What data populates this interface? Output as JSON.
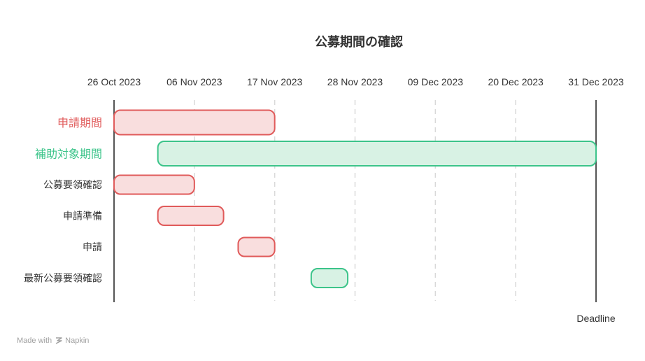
{
  "chart_data": {
    "type": "gantt",
    "title": "公募期間の確認",
    "x_ticks": [
      "26 Oct 2023",
      "06 Nov 2023",
      "17 Nov 2023",
      "28 Nov 2023",
      "09 Dec 2023",
      "20 Dec 2023",
      "31 Dec 2023"
    ],
    "xlim": [
      "2023-10-26",
      "2023-12-31"
    ],
    "grid": "vertical dashed",
    "colors": {
      "red_stroke": "#e05a5a",
      "red_fill": "#f9dede",
      "green_stroke": "#3cc48a",
      "green_fill": "#d8f2e4",
      "text": "#333333",
      "axis": "#555555",
      "grid": "#d9d9d9"
    },
    "tasks": [
      {
        "label": "申請期間",
        "start": "2023-10-26",
        "end": "2023-11-17",
        "color": "red",
        "emphasis": true
      },
      {
        "label": "補助対象期間",
        "start": "2023-11-01",
        "end": "2023-12-31",
        "color": "green",
        "emphasis": true
      },
      {
        "label": "公募要領確認",
        "start": "2023-10-26",
        "end": "2023-11-06",
        "color": "red",
        "emphasis": false
      },
      {
        "label": "申請準備",
        "start": "2023-11-01",
        "end": "2023-11-10",
        "color": "red",
        "emphasis": false
      },
      {
        "label": "申請",
        "start": "2023-11-12",
        "end": "2023-11-17",
        "color": "red",
        "emphasis": false
      },
      {
        "label": "最新公募要領確認",
        "start": "2023-11-22",
        "end": "2023-11-27",
        "color": "green",
        "emphasis": false
      }
    ],
    "deadline": {
      "date": "2023-12-31",
      "label": "Deadline"
    }
  },
  "footer": {
    "made_with": "Made with",
    "brand": "Napkin"
  }
}
